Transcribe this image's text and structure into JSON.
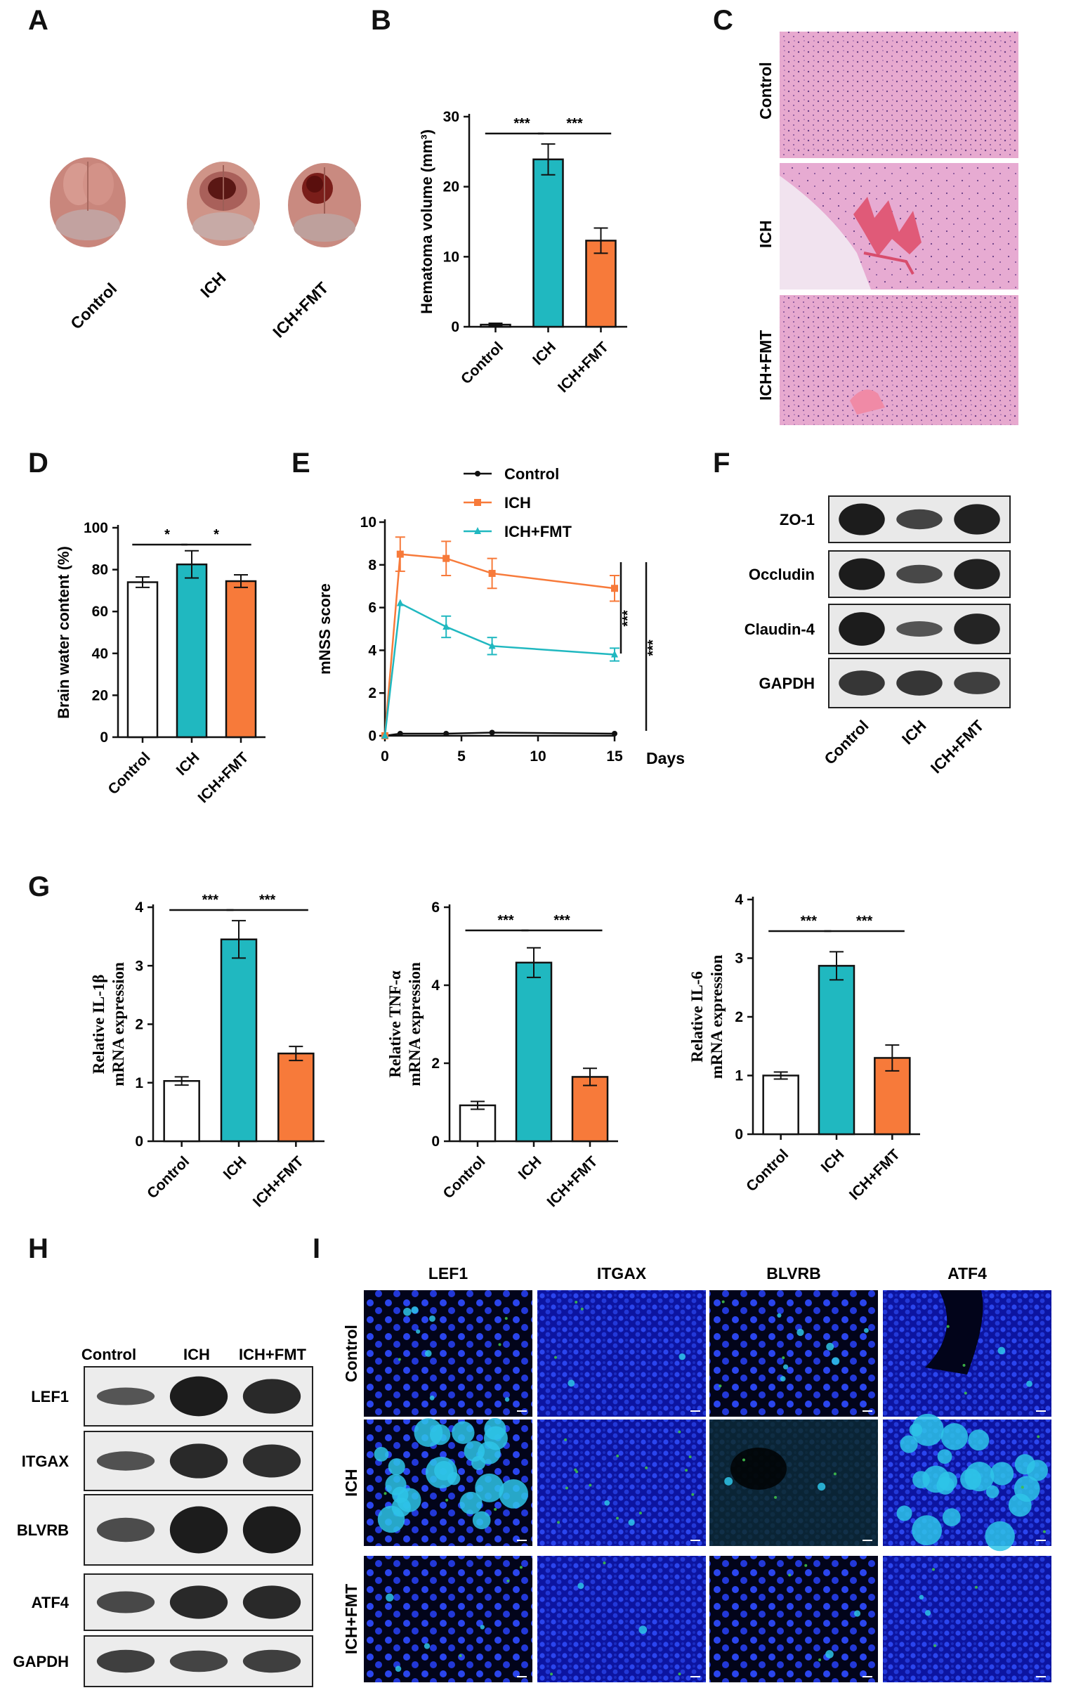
{
  "panel_letters": [
    "A",
    "B",
    "C",
    "D",
    "E",
    "F",
    "G",
    "H",
    "I"
  ],
  "colors": {
    "control": "#ffffff",
    "ich": "#20b8c0",
    "ich_fmt": "#f77a3a",
    "outline": "#111111",
    "he_stain": "#e7a9cf",
    "dapi": "#1b2fd6",
    "if_bright": "#2ec4e8",
    "if_green": "#3fbf4a"
  },
  "panelA": {
    "labels": [
      "Control",
      "ICH",
      "ICH+FMT"
    ]
  },
  "panelC": {
    "row_labels": [
      "Control",
      "ICH",
      "ICH+FMT"
    ]
  },
  "panelF": {
    "bands": [
      "ZO-1",
      "Occludin",
      "Claudin-4",
      "GAPDH"
    ],
    "lanes": [
      "Control",
      "ICH",
      "ICH+FMT"
    ]
  },
  "panelH": {
    "lanes": [
      "Control",
      "ICH",
      "ICH+FMT"
    ],
    "bands": [
      "LEF1",
      "ITGAX",
      "BLVRB",
      "ATF4",
      "GAPDH"
    ]
  },
  "panelI": {
    "columns": [
      "LEF1",
      "ITGAX",
      "BLVRB",
      "ATF4"
    ],
    "rows": [
      "Control",
      "ICH",
      "ICH+FMT"
    ]
  },
  "chart_data": [
    {
      "id": "B",
      "type": "bar",
      "categories": [
        "Control",
        "ICH",
        "ICH+FMT"
      ],
      "values": [
        0.3,
        23.9,
        12.3
      ],
      "errors": [
        0.2,
        2.2,
        1.8
      ],
      "ylabel": "Hematoma volume (mm³)",
      "ylim": [
        0,
        30
      ],
      "yticks": [
        0,
        10,
        20,
        30
      ],
      "significance": [
        {
          "between": [
            "Control",
            "ICH"
          ],
          "label": "***"
        },
        {
          "between": [
            "ICH",
            "ICH+FMT"
          ],
          "label": "***"
        }
      ]
    },
    {
      "id": "D",
      "type": "bar",
      "categories": [
        "Control",
        "ICH",
        "ICH+FMT"
      ],
      "values": [
        74,
        82.5,
        74.5
      ],
      "errors": [
        2.5,
        6.5,
        3
      ],
      "ylabel": "Brain water content (%)",
      "ylim": [
        0,
        100
      ],
      "yticks": [
        0,
        20,
        40,
        60,
        80,
        100
      ],
      "significance": [
        {
          "between": [
            "Control",
            "ICH"
          ],
          "label": "*"
        },
        {
          "between": [
            "ICH",
            "ICH+FMT"
          ],
          "label": "*"
        }
      ]
    },
    {
      "id": "E",
      "type": "line",
      "x": [
        0,
        1,
        4,
        7,
        15
      ],
      "xlabel": "Days",
      "ylabel": "mNSS score",
      "xlim": [
        0,
        15
      ],
      "xticks": [
        0,
        5,
        10,
        15
      ],
      "ylim": [
        0,
        10
      ],
      "yticks": [
        0,
        2,
        4,
        6,
        8,
        10
      ],
      "legend_position": "top-left",
      "series": [
        {
          "name": "Control",
          "values": [
            0,
            0.1,
            0.1,
            0.15,
            0.1
          ],
          "errors": [
            0,
            0,
            0,
            0,
            0
          ],
          "marker": "circle"
        },
        {
          "name": "ICH",
          "values": [
            0,
            8.5,
            8.3,
            7.6,
            6.9
          ],
          "errors": [
            0,
            0.8,
            0.8,
            0.7,
            0.6
          ],
          "marker": "square"
        },
        {
          "name": "ICH+FMT",
          "values": [
            0,
            6.2,
            5.1,
            4.2,
            3.8
          ],
          "errors": [
            0,
            0,
            0.5,
            0.4,
            0.3
          ],
          "marker": "triangle"
        }
      ],
      "significance": [
        "***",
        "***"
      ]
    },
    {
      "id": "G1",
      "type": "bar",
      "categories": [
        "Control",
        "ICH",
        "ICH+FMT"
      ],
      "values": [
        1.03,
        3.45,
        1.5
      ],
      "errors": [
        0.07,
        0.32,
        0.12
      ],
      "ylabel": [
        "Relative IL-1β",
        "mRNA expression"
      ],
      "ylim": [
        0,
        4
      ],
      "yticks": [
        0,
        1,
        2,
        3,
        4
      ],
      "significance": [
        {
          "between": [
            "Control",
            "ICH"
          ],
          "label": "***"
        },
        {
          "between": [
            "ICH",
            "ICH+FMT"
          ],
          "label": "***"
        }
      ]
    },
    {
      "id": "G2",
      "type": "bar",
      "categories": [
        "Control",
        "ICH",
        "ICH+FMT"
      ],
      "values": [
        0.92,
        4.58,
        1.65
      ],
      "errors": [
        0.1,
        0.38,
        0.22
      ],
      "ylabel": [
        "Relative TNF-α",
        "mRNA expression"
      ],
      "ylim": [
        0,
        6
      ],
      "yticks": [
        0,
        2,
        4,
        6
      ],
      "significance": [
        {
          "between": [
            "Control",
            "ICH"
          ],
          "label": "***"
        },
        {
          "between": [
            "ICH",
            "ICH+FMT"
          ],
          "label": "***"
        }
      ]
    },
    {
      "id": "G3",
      "type": "bar",
      "categories": [
        "Control",
        "ICH",
        "ICH+FMT"
      ],
      "values": [
        1.0,
        2.87,
        1.3
      ],
      "errors": [
        0.06,
        0.24,
        0.22
      ],
      "ylabel": [
        "Relative IL-6",
        "mRNA expression"
      ],
      "ylim": [
        0,
        4
      ],
      "yticks": [
        0,
        1,
        2,
        3,
        4
      ],
      "significance": [
        {
          "between": [
            "Control",
            "ICH"
          ],
          "label": "***"
        },
        {
          "between": [
            "ICH",
            "ICH+FMT"
          ],
          "label": "***"
        }
      ]
    }
  ]
}
